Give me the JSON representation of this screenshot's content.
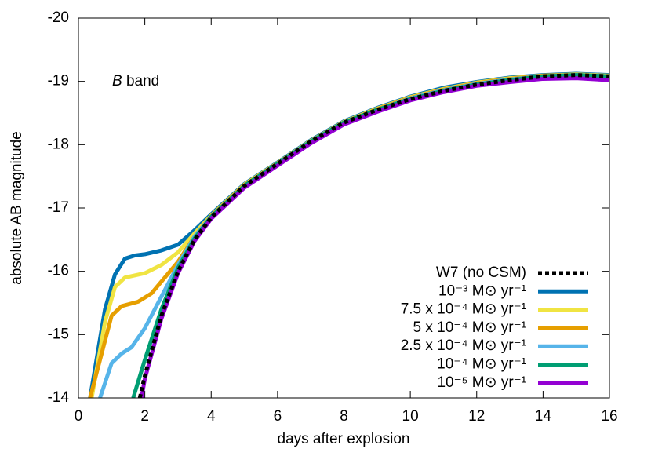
{
  "chart_data": {
    "type": "line",
    "annotation": [
      "B",
      "band"
    ],
    "xlabel": "days after explosion",
    "ylabel": "absolute AB magnitude",
    "xlim": [
      0,
      16
    ],
    "xticks": [
      0,
      2,
      4,
      6,
      8,
      10,
      12,
      14,
      16
    ],
    "ylim": [
      -14,
      -20
    ],
    "yticks": [
      -20,
      -19,
      -18,
      -17,
      -16,
      -15,
      -14
    ],
    "legend": "lower right",
    "series": [
      {
        "name": "W7 (no CSM)",
        "color": "#000000",
        "dashed": true,
        "x": [
          1.85,
          2,
          2.5,
          3,
          3.5,
          4,
          5,
          6,
          7,
          8,
          9,
          10,
          11,
          12,
          13,
          14,
          15,
          16
        ],
        "values": [
          -14,
          -14.35,
          -15.3,
          -16.0,
          -16.5,
          -16.85,
          -17.35,
          -17.7,
          -18.05,
          -18.35,
          -18.55,
          -18.72,
          -18.85,
          -18.95,
          -19.02,
          -19.08,
          -19.1,
          -19.08
        ]
      },
      {
        "name": "10⁻³ M⊙ yr⁻¹",
        "color": "#0072b2",
        "x": [
          0.35,
          0.8,
          1.1,
          1.4,
          1.7,
          2,
          2.5,
          3,
          3.5,
          4,
          5,
          6,
          7,
          8,
          9,
          10,
          11,
          12,
          13,
          14,
          15,
          16
        ],
        "values": [
          -14,
          -15.4,
          -15.95,
          -16.2,
          -16.25,
          -16.27,
          -16.33,
          -16.42,
          -16.65,
          -16.9,
          -17.38,
          -17.72,
          -18.07,
          -18.37,
          -18.58,
          -18.76,
          -18.9,
          -18.99,
          -19.06,
          -19.1,
          -19.12,
          -19.1
        ]
      },
      {
        "name": "7.5 x 10⁻⁴ M⊙ yr⁻¹",
        "color": "#f0e442",
        "x": [
          0.4,
          0.8,
          1.1,
          1.4,
          2,
          2.5,
          3,
          3.5,
          4,
          5,
          6,
          7,
          8,
          9,
          10,
          11,
          12,
          13,
          14,
          15,
          16
        ],
        "values": [
          -14,
          -15.2,
          -15.75,
          -15.9,
          -15.97,
          -16.1,
          -16.3,
          -16.6,
          -16.88,
          -17.37,
          -17.71,
          -18.06,
          -18.36,
          -18.57,
          -18.75,
          -18.88,
          -18.98,
          -19.05,
          -19.09,
          -19.11,
          -19.09
        ]
      },
      {
        "name": "5 x 10⁻⁴ M⊙ yr⁻¹",
        "color": "#e69f00",
        "x": [
          0.35,
          0.7,
          1,
          1.3,
          1.8,
          2.2,
          2.6,
          3,
          3.5,
          4,
          5,
          6,
          7,
          8,
          9,
          10,
          11,
          12,
          13,
          14,
          15,
          16
        ],
        "values": [
          -14,
          -14.7,
          -15.3,
          -15.45,
          -15.52,
          -15.65,
          -15.9,
          -16.15,
          -16.55,
          -16.87,
          -17.36,
          -17.7,
          -18.05,
          -18.35,
          -18.56,
          -18.74,
          -18.87,
          -18.97,
          -19.04,
          -19.09,
          -19.1,
          -19.08
        ]
      },
      {
        "name": "2.5 x 10⁻⁴ M⊙ yr⁻¹",
        "color": "#56b4e9",
        "x": [
          0.65,
          1,
          1.3,
          1.6,
          2,
          2.5,
          3,
          3.5,
          4,
          5,
          6,
          7,
          8,
          9,
          10,
          11,
          12,
          13,
          14,
          15,
          16
        ],
        "values": [
          -14,
          -14.55,
          -14.7,
          -14.8,
          -15.1,
          -15.6,
          -16.1,
          -16.55,
          -16.86,
          -17.35,
          -17.7,
          -18.05,
          -18.35,
          -18.55,
          -18.73,
          -18.86,
          -18.96,
          -19.03,
          -19.08,
          -19.1,
          -19.08
        ]
      },
      {
        "name": "10⁻⁴ M⊙ yr⁻¹",
        "color": "#009e73",
        "x": [
          1.65,
          2,
          2.5,
          3,
          3.5,
          4,
          5,
          6,
          7,
          8,
          9,
          10,
          11,
          12,
          13,
          14,
          15,
          16
        ],
        "values": [
          -14,
          -14.6,
          -15.4,
          -16.05,
          -16.52,
          -16.86,
          -17.35,
          -17.7,
          -18.05,
          -18.35,
          -18.55,
          -18.72,
          -18.85,
          -18.95,
          -19.02,
          -19.08,
          -19.1,
          -19.08
        ]
      },
      {
        "name": "10⁻⁵ M⊙ yr⁻¹",
        "color": "#9400d3",
        "x": [
          1.9,
          2,
          2.5,
          3,
          3.5,
          4,
          5,
          6,
          7,
          8,
          9,
          10,
          11,
          12,
          13,
          14,
          15,
          16
        ],
        "values": [
          -14,
          -14.3,
          -15.25,
          -15.97,
          -16.48,
          -16.83,
          -17.32,
          -17.67,
          -18.02,
          -18.32,
          -18.52,
          -18.7,
          -18.83,
          -18.93,
          -18.99,
          -19.04,
          -19.05,
          -19.02
        ]
      }
    ]
  }
}
